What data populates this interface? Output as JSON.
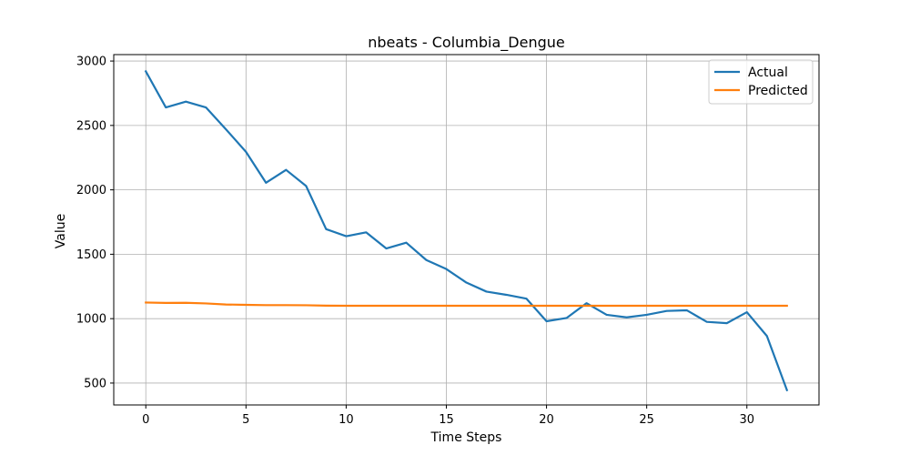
{
  "chart_data": {
    "type": "line",
    "title": "nbeats - Columbia_Dengue",
    "xlabel": "Time Steps",
    "ylabel": "Value",
    "xlim": [
      -1.6,
      33.6
    ],
    "ylim": [
      330,
      3050
    ],
    "xticks": [
      0,
      5,
      10,
      15,
      20,
      25,
      30
    ],
    "yticks": [
      500,
      1000,
      1500,
      2000,
      2500,
      3000
    ],
    "grid": true,
    "legend_position": "top-right",
    "x": [
      0,
      1,
      2,
      3,
      4,
      5,
      6,
      7,
      8,
      9,
      10,
      11,
      12,
      13,
      14,
      15,
      16,
      17,
      18,
      19,
      20,
      21,
      22,
      23,
      24,
      25,
      26,
      27,
      28,
      29,
      30,
      31,
      32
    ],
    "series": [
      {
        "name": "Actual",
        "color": "#1f77b4",
        "values": [
          2920,
          2640,
          2685,
          2640,
          2470,
          2295,
          2055,
          2155,
          2030,
          1695,
          1640,
          1670,
          1545,
          1590,
          1455,
          1385,
          1280,
          1210,
          1185,
          1155,
          980,
          1005,
          1120,
          1030,
          1010,
          1030,
          1060,
          1065,
          975,
          965,
          1050,
          865,
          445
        ]
      },
      {
        "name": "Predicted",
        "color": "#ff7f0e",
        "values": [
          1125,
          1122,
          1123,
          1118,
          1110,
          1107,
          1105,
          1105,
          1104,
          1101,
          1100,
          1100,
          1100,
          1100,
          1100,
          1100,
          1100,
          1100,
          1100,
          1100,
          1100,
          1100,
          1100,
          1100,
          1100,
          1100,
          1100,
          1100,
          1100,
          1100,
          1100,
          1100,
          1100
        ]
      }
    ]
  }
}
